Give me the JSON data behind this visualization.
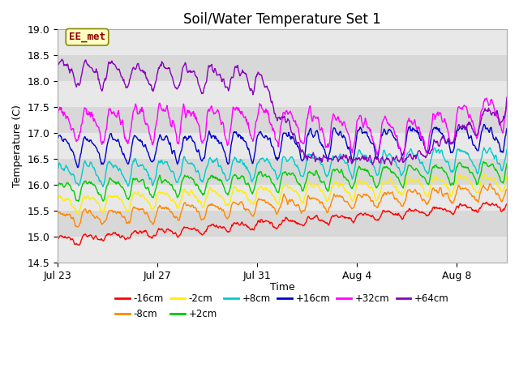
{
  "title": "Soil/Water Temperature Set 1",
  "ylabel": "Temperature (C)",
  "xlabel": "Time",
  "annotation": "EE_met",
  "ylim": [
    14.5,
    19.0
  ],
  "background_color": "#ffffff",
  "plot_bg_color": "#f0f0f0",
  "band_colors": [
    "#e8e8e8",
    "#d8d8d8"
  ],
  "series": [
    {
      "label": "-16cm",
      "color": "#ff0000",
      "base": 14.93,
      "trend": 0.038,
      "amp": 0.06,
      "noise_scale": 0.04
    },
    {
      "label": "-8cm",
      "color": "#ff8800",
      "base": 15.35,
      "trend": 0.03,
      "amp": 0.12,
      "noise_scale": 0.05
    },
    {
      "label": "-2cm",
      "color": "#ffee00",
      "base": 15.63,
      "trend": 0.025,
      "amp": 0.14,
      "noise_scale": 0.05
    },
    {
      "label": "+2cm",
      "color": "#00cc00",
      "base": 15.9,
      "trend": 0.022,
      "amp": 0.16,
      "noise_scale": 0.05
    },
    {
      "label": "+8cm",
      "color": "#00cccc",
      "base": 16.22,
      "trend": 0.018,
      "amp": 0.18,
      "noise_scale": 0.06
    },
    {
      "label": "+16cm",
      "color": "#0000cc",
      "base": 16.68,
      "trend": 0.015,
      "amp": 0.22,
      "noise_scale": 0.07
    },
    {
      "label": "+32cm",
      "color": "#ff00ff",
      "base": 17.2,
      "trend": 0.005,
      "amp": 0.28,
      "noise_scale": 0.1
    },
    {
      "label": "+64cm",
      "color": "#8800bb",
      "base": 18.18,
      "trend": -0.015,
      "amp": 0.2,
      "noise_scale": 0.08
    }
  ],
  "xtick_positions": [
    0,
    4,
    8,
    12,
    16
  ],
  "xtick_labels": [
    "Jul 23",
    "Jul 27",
    "Jul 31",
    "Aug 4",
    "Aug 8"
  ],
  "n_days": 18,
  "points_per_day": 48,
  "title_fontsize": 12,
  "axis_fontsize": 9,
  "tick_fontsize": 9,
  "legend_ncol": 6
}
